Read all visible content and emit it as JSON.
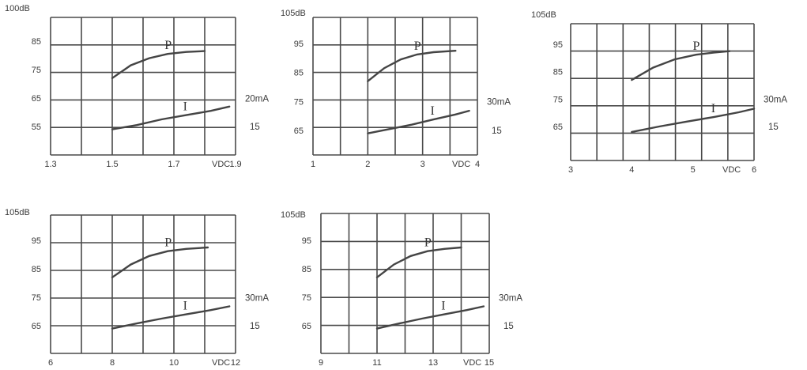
{
  "chart_data": [
    {
      "type": "line",
      "y_top_label": "100dB",
      "yticks": [
        "85",
        "75",
        "65",
        "55"
      ],
      "xticks": [
        "1.3",
        "1.5",
        "1.7",
        "1.9"
      ],
      "x_unit": "VDC",
      "right_labels": [
        "20mA",
        "15"
      ],
      "series": [
        {
          "name": "P",
          "x": [
            1.5,
            1.56,
            1.62,
            1.68,
            1.74,
            1.8
          ],
          "y": [
            72,
            76.5,
            79,
            80.5,
            81.2,
            81.5
          ]
        },
        {
          "name": "I",
          "x": [
            1.5,
            1.58,
            1.66,
            1.74,
            1.82,
            1.88
          ],
          "y": [
            54,
            55.5,
            57.5,
            59,
            60.5,
            62
          ]
        }
      ]
    },
    {
      "type": "line",
      "y_top_label": "105dB",
      "yticks": [
        "95",
        "85",
        "75",
        "65"
      ],
      "xticks": [
        "1",
        "2",
        "3",
        "4"
      ],
      "x_unit": "VDC",
      "right_labels": [
        "30mA",
        "15"
      ],
      "series": [
        {
          "name": "P",
          "x": [
            2,
            2.3,
            2.6,
            2.9,
            3.2,
            3.6
          ],
          "y": [
            82,
            86.5,
            89.5,
            91.2,
            92,
            92.5
          ]
        },
        {
          "name": "I",
          "x": [
            2,
            2.4,
            2.8,
            3.2,
            3.6,
            3.85
          ],
          "y": [
            64,
            65.5,
            67,
            68.8,
            70.5,
            71.8
          ]
        }
      ]
    },
    {
      "type": "line",
      "y_top_label": "105dB",
      "yticks": [
        "95",
        "85",
        "75",
        "65"
      ],
      "xticks": [
        "3",
        "4",
        "5",
        "6"
      ],
      "x_unit": "VDC",
      "right_labels": [
        "30mA",
        "15"
      ],
      "series": [
        {
          "name": "P",
          "x": [
            4,
            4.35,
            4.7,
            5.05,
            5.35,
            5.6
          ],
          "y": [
            82,
            86.5,
            89.5,
            91.2,
            92,
            92.5
          ]
        },
        {
          "name": "I",
          "x": [
            4,
            4.45,
            4.9,
            5.35,
            5.75,
            6.0
          ],
          "y": [
            63,
            65,
            66.8,
            68.5,
            70.2,
            71.5
          ]
        }
      ]
    },
    {
      "type": "line",
      "y_top_label": "105dB",
      "yticks": [
        "95",
        "85",
        "75",
        "65"
      ],
      "xticks": [
        "6",
        "8",
        "10",
        "12"
      ],
      "x_unit": "VDC",
      "right_labels": [
        "30mA",
        "15"
      ],
      "series": [
        {
          "name": "P",
          "x": [
            8,
            8.6,
            9.2,
            9.8,
            10.4,
            11.1
          ],
          "y": [
            82,
            86.5,
            89.5,
            91.2,
            92,
            92.5
          ]
        },
        {
          "name": "I",
          "x": [
            8,
            8.8,
            9.6,
            10.4,
            11.2,
            11.8
          ],
          "y": [
            64,
            65.8,
            67.5,
            69,
            70.5,
            71.8
          ]
        }
      ]
    },
    {
      "type": "line",
      "y_top_label": "105dB",
      "yticks": [
        "95",
        "85",
        "75",
        "65"
      ],
      "xticks": [
        "9",
        "11",
        "13",
        "15"
      ],
      "x_unit": "VDC",
      "right_labels": [
        "30mA",
        "15"
      ],
      "series": [
        {
          "name": "P",
          "x": [
            11,
            11.6,
            12.2,
            12.8,
            13.4,
            14.0
          ],
          "y": [
            82,
            86.5,
            89.5,
            91.2,
            92,
            92.5
          ]
        },
        {
          "name": "I",
          "x": [
            11,
            11.8,
            12.6,
            13.4,
            14.2,
            14.8
          ],
          "y": [
            64,
            65.8,
            67.5,
            69,
            70.5,
            71.8
          ]
        }
      ]
    }
  ]
}
